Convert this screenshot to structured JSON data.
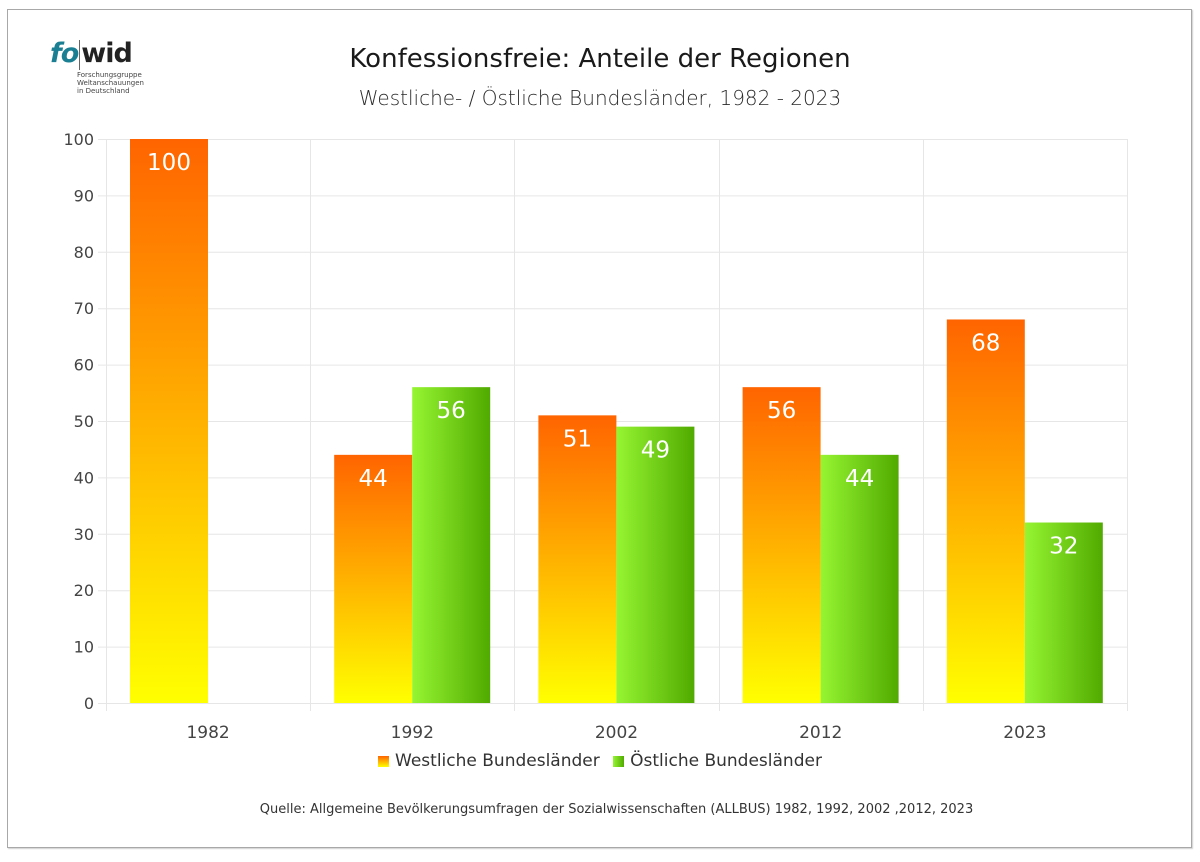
{
  "logo": {
    "brand_a": "fo",
    "brand_b": "wid",
    "lines": [
      "Forschungsgruppe",
      "Weltanschauungen",
      "in Deutschland"
    ]
  },
  "colors": {
    "west_top": "#ff6400",
    "west_bottom": "#ffff00",
    "east_left": "#96f532",
    "east_right": "#50aa00",
    "grid": "#e6e6e6"
  },
  "chart_data": {
    "type": "bar",
    "title": "Konfessionsfreie: Anteile der Regionen",
    "subtitle": "Westliche- / Östliche Bundesländer, 1982 - 2023",
    "xlabel": "",
    "ylabel": "",
    "ylim": [
      0,
      100
    ],
    "yticks": [
      0,
      10,
      20,
      30,
      40,
      50,
      60,
      70,
      80,
      90,
      100
    ],
    "grid": true,
    "legend_position": "bottom",
    "categories": [
      "1982",
      "1992",
      "2002",
      "2012",
      "2023"
    ],
    "series": [
      {
        "name": "Westliche Bundesländer",
        "values": [
          100,
          44,
          51,
          56,
          68
        ]
      },
      {
        "name": "Östliche Bundesländer",
        "values": [
          null,
          56,
          49,
          44,
          32
        ]
      }
    ],
    "source": "Quelle: Allgemeine Bevölkerungsumfragen der Sozialwissenschaften (ALLBUS) 1982, 1992, 2002 ,2012, 2023"
  }
}
